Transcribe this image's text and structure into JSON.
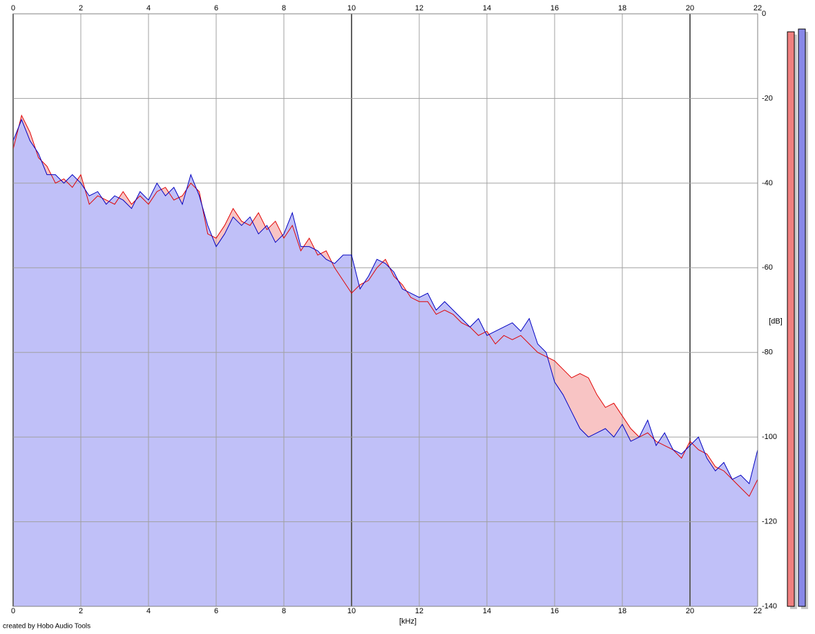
{
  "chart_data": {
    "type": "spectrum",
    "x_label": "[kHz]",
    "y_label": "[dB]",
    "watermark": "created by Hobo Audio Tools",
    "xlim": [
      0,
      22
    ],
    "xticks": [
      0,
      2,
      4,
      6,
      8,
      10,
      12,
      14,
      16,
      18,
      20,
      22
    ],
    "ylim": [
      -140,
      0
    ],
    "yticks": [
      0,
      -20,
      -40,
      -60,
      -80,
      -100,
      -120,
      -140
    ],
    "grid": true,
    "x": [
      0,
      0.25,
      0.5,
      0.75,
      1,
      1.25,
      1.5,
      1.75,
      2,
      2.25,
      2.5,
      2.75,
      3,
      3.25,
      3.5,
      3.75,
      4,
      4.25,
      4.5,
      4.75,
      5,
      5.25,
      5.5,
      5.75,
      6,
      6.25,
      6.5,
      6.75,
      7,
      7.25,
      7.5,
      7.75,
      8,
      8.25,
      8.5,
      8.75,
      9,
      9.25,
      9.5,
      9.75,
      10,
      10.25,
      10.5,
      10.75,
      11,
      11.25,
      11.5,
      11.75,
      12,
      12.25,
      12.5,
      12.75,
      13,
      13.25,
      13.5,
      13.75,
      14,
      14.25,
      14.5,
      14.75,
      15,
      15.25,
      15.5,
      15.75,
      16,
      16.25,
      16.5,
      16.75,
      17,
      17.25,
      17.5,
      17.75,
      18,
      18.25,
      18.5,
      18.75,
      19,
      19.25,
      19.5,
      19.75,
      20,
      20.25,
      20.5,
      20.75,
      21,
      21.25,
      21.5,
      21.75,
      22
    ],
    "series": [
      {
        "color": "#e00000",
        "fill": "#f8c4c4",
        "values": [
          -32,
          -24,
          -28,
          -34,
          -36,
          -40,
          -39,
          -41,
          -38,
          -45,
          -43,
          -44,
          -45,
          -42,
          -45,
          -43,
          -45,
          -42,
          -41,
          -44,
          -43,
          -40,
          -42,
          -52,
          -53,
          -50,
          -46,
          -49,
          -50,
          -47,
          -51,
          -49,
          -53,
          -50,
          -56,
          -53,
          -57,
          -56,
          -60,
          -63,
          -66,
          -64,
          -63,
          -60,
          -58,
          -62,
          -64,
          -67,
          -68,
          -68,
          -71,
          -70,
          -71,
          -73,
          -74,
          -76,
          -75,
          -78,
          -76,
          -77,
          -76,
          -78,
          -80,
          -81,
          -82,
          -84,
          -86,
          -85,
          -86,
          -90,
          -93,
          -92,
          -95,
          -98,
          -100,
          -99,
          -101,
          -102,
          -103,
          -105,
          -101,
          -103,
          -104,
          -107,
          -108,
          -110,
          -112,
          -114,
          -110
        ]
      },
      {
        "color": "#0000c0",
        "fill": "#c0c0f8",
        "values": [
          -30,
          -25,
          -30,
          -33,
          -38,
          -38,
          -40,
          -38,
          -40,
          -43,
          -42,
          -45,
          -43,
          -44,
          -46,
          -42,
          -44,
          -40,
          -43,
          -41,
          -45,
          -38,
          -43,
          -50,
          -55,
          -52,
          -48,
          -50,
          -48,
          -52,
          -50,
          -54,
          -52,
          -47,
          -55,
          -55,
          -56,
          -58,
          -59,
          -57,
          -57,
          -65,
          -62,
          -58,
          -59,
          -61,
          -65,
          -66,
          -67,
          -66,
          -70,
          -68,
          -70,
          -72,
          -74,
          -72,
          -76,
          -75,
          -74,
          -73,
          -75,
          -72,
          -78,
          -80,
          -87,
          -90,
          -94,
          -98,
          -100,
          -99,
          -98,
          -100,
          -97,
          -101,
          -100,
          -96,
          -102,
          -99,
          -103,
          -104,
          -102,
          -100,
          -105,
          -108,
          -106,
          -110,
          -109,
          -111,
          -103
        ]
      }
    ]
  }
}
